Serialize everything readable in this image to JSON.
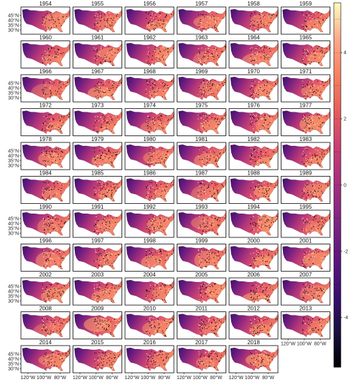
{
  "chart_data": {
    "type": "heatmap",
    "title": "",
    "subtitle": "",
    "panels": [
      "1954",
      "1955",
      "1956",
      "1957",
      "1958",
      "1959",
      "1960",
      "1961",
      "1962",
      "1963",
      "1964",
      "1965",
      "1966",
      "1967",
      "1968",
      "1969",
      "1970",
      "1971",
      "1972",
      "1973",
      "1974",
      "1975",
      "1976",
      "1977",
      "1978",
      "1979",
      "1980",
      "1981",
      "1982",
      "1983",
      "1984",
      "1985",
      "1986",
      "1987",
      "1988",
      "1989",
      "1990",
      "1991",
      "1992",
      "1993",
      "1994",
      "1995",
      "1996",
      "1997",
      "1998",
      "1999",
      "2000",
      "2001",
      "2002",
      "2003",
      "2004",
      "2005",
      "2006",
      "2007",
      "2008",
      "2009",
      "2010",
      "2011",
      "2012",
      "2013",
      "2014",
      "2015",
      "2016",
      "2017",
      "2018"
    ],
    "panel_columns": 6,
    "lat_ticks": [
      "45°N",
      "40°N",
      "35°N",
      "30°N"
    ],
    "lon_ticks": [
      "120°W",
      "100°W",
      "80°W"
    ],
    "colorbar": {
      "ticks": [
        4,
        2,
        0,
        -2,
        -4
      ],
      "range": [
        -5.5,
        5.5
      ],
      "colors": [
        "#000004",
        "#1a1042",
        "#3b0f70",
        "#5d177f",
        "#7f2582",
        "#a3307e",
        "#c83e73",
        "#e65d5c",
        "#f6815f",
        "#fca98a",
        "#fcfdbf"
      ]
    }
  }
}
